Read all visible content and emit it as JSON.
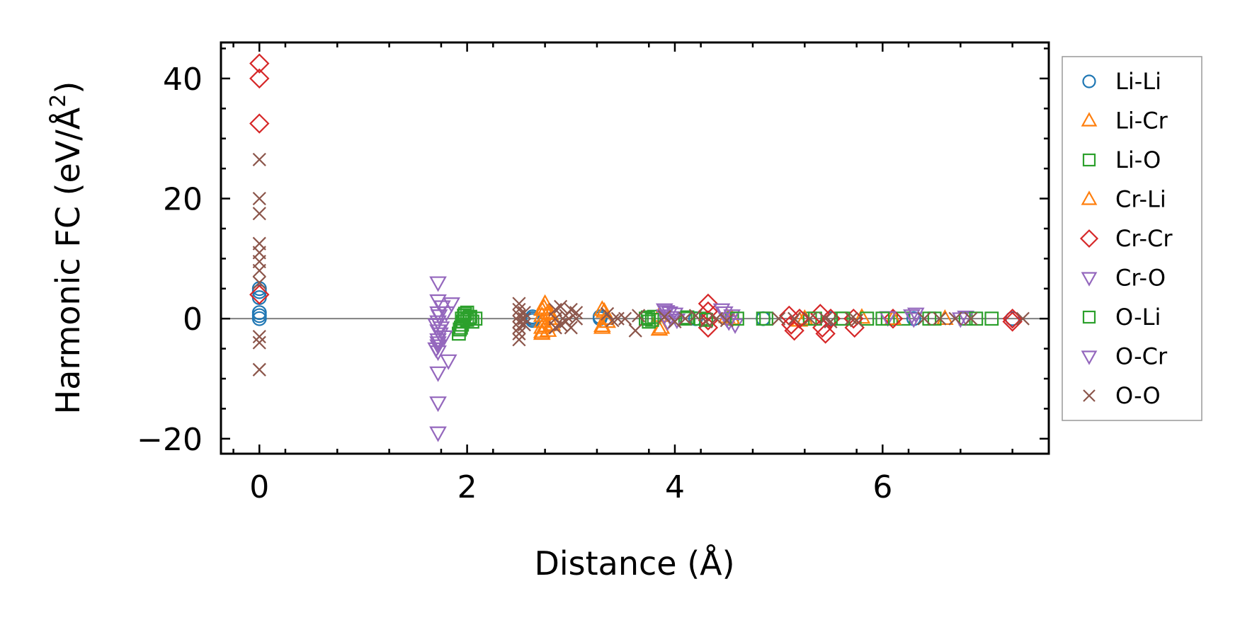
{
  "chart_data": {
    "type": "scatter",
    "xlabel": "Distance (Å)",
    "ylabel_main": "Harmonic FC (eV/Å",
    "ylabel_sup": "2",
    "ylabel_close": ")",
    "xlim": [
      -0.37,
      7.6
    ],
    "ylim": [
      -22.5,
      46
    ],
    "xticks": [
      0,
      2,
      4,
      6
    ],
    "xtick_labels": [
      "0",
      "2",
      "4",
      "6"
    ],
    "yticks": [
      -20,
      0,
      20,
      40
    ],
    "ytick_labels": [
      "−20",
      "0",
      "20",
      "40"
    ],
    "zero_line": true,
    "grid": false,
    "legend_position": "right",
    "series": [
      {
        "name": "Li-Li",
        "marker": "circle",
        "color": "#1f77b4",
        "filled": false,
        "points": [
          [
            0,
            0
          ],
          [
            0,
            0.5
          ],
          [
            0,
            1
          ],
          [
            0,
            3.5
          ],
          [
            0,
            4.5
          ],
          [
            0,
            5
          ],
          [
            2.63,
            0
          ],
          [
            2.63,
            0.3
          ],
          [
            2.63,
            -0.3
          ],
          [
            3.28,
            0
          ],
          [
            3.28,
            0.3
          ],
          [
            4.2,
            0
          ],
          [
            4.85,
            0
          ],
          [
            5.5,
            0
          ],
          [
            6.3,
            0
          ],
          [
            7.25,
            0
          ]
        ]
      },
      {
        "name": "Li-Cr",
        "marker": "triangle-up",
        "color": "#ff7f0e",
        "filled": false,
        "points": [
          [
            2.72,
            -2.5
          ],
          [
            2.72,
            -1.5
          ],
          [
            2.72,
            -0.5
          ],
          [
            2.72,
            0.5
          ],
          [
            2.72,
            1.5
          ],
          [
            2.75,
            2.5
          ],
          [
            2.78,
            -2
          ],
          [
            2.78,
            1
          ],
          [
            2.82,
            -1
          ],
          [
            2.82,
            0
          ],
          [
            3.3,
            -1.5
          ],
          [
            3.3,
            1.5
          ],
          [
            3.33,
            0
          ],
          [
            3.35,
            -0.5
          ],
          [
            3.85,
            -1.8
          ],
          [
            3.85,
            0.5
          ],
          [
            4.5,
            0.3
          ],
          [
            5.2,
            -0.3
          ],
          [
            5.8,
            0.2
          ],
          [
            6.6,
            0
          ]
        ]
      },
      {
        "name": "Li-O",
        "marker": "square",
        "color": "#2ca02c",
        "filled": false,
        "points": [
          [
            1.92,
            -2.5
          ],
          [
            1.93,
            -1.8
          ],
          [
            1.95,
            -1
          ],
          [
            1.95,
            0
          ],
          [
            1.97,
            0.5
          ],
          [
            2.0,
            1
          ],
          [
            2.02,
            0.2
          ],
          [
            2.05,
            -0.5
          ],
          [
            2.08,
            0
          ],
          [
            3.72,
            0
          ],
          [
            3.75,
            -0.5
          ],
          [
            3.8,
            0.3
          ],
          [
            4.1,
            0
          ],
          [
            4.25,
            0
          ],
          [
            4.55,
            0
          ],
          [
            4.85,
            0
          ],
          [
            5.3,
            0
          ],
          [
            5.6,
            0
          ],
          [
            5.85,
            0
          ],
          [
            6.05,
            0
          ],
          [
            6.2,
            0
          ],
          [
            6.5,
            0
          ],
          [
            6.8,
            0
          ],
          [
            7.05,
            0
          ]
        ]
      },
      {
        "name": "Cr-Li",
        "marker": "triangle-up",
        "color": "#ff7f0e",
        "filled": false,
        "points": [
          [
            2.72,
            -2.2
          ],
          [
            2.74,
            1.8
          ],
          [
            2.76,
            -1.2
          ],
          [
            2.8,
            0.8
          ],
          [
            3.3,
            -1.2
          ],
          [
            3.32,
            1.2
          ],
          [
            3.87,
            -1.5
          ],
          [
            4.55,
            0
          ],
          [
            5.25,
            0
          ],
          [
            6.1,
            0
          ]
        ]
      },
      {
        "name": "Cr-Cr",
        "marker": "diamond",
        "color": "#d62728",
        "filled": false,
        "points": [
          [
            0,
            42.5
          ],
          [
            0,
            40
          ],
          [
            0,
            32.5
          ],
          [
            0,
            4
          ],
          [
            4.32,
            2.5
          ],
          [
            4.32,
            1.2
          ],
          [
            4.32,
            -0.3
          ],
          [
            4.32,
            -1.5
          ],
          [
            5.1,
            0.5
          ],
          [
            5.12,
            -1
          ],
          [
            5.15,
            -2
          ],
          [
            5.2,
            0
          ],
          [
            5.4,
            0.8
          ],
          [
            5.42,
            -1.5
          ],
          [
            5.45,
            -2.5
          ],
          [
            5.5,
            0
          ],
          [
            5.72,
            0
          ],
          [
            5.73,
            -1.5
          ],
          [
            6.1,
            0
          ],
          [
            7.25,
            -0.5
          ],
          [
            7.25,
            0
          ]
        ]
      },
      {
        "name": "Cr-O",
        "marker": "triangle-down",
        "color": "#9467bd",
        "filled": false,
        "points": [
          [
            1.72,
            6
          ],
          [
            1.72,
            3
          ],
          [
            1.72,
            1
          ],
          [
            1.72,
            -0.5
          ],
          [
            1.72,
            -2
          ],
          [
            1.72,
            -3.5
          ],
          [
            1.72,
            -4.5
          ],
          [
            1.72,
            -5.5
          ],
          [
            1.72,
            -9
          ],
          [
            1.72,
            -14
          ],
          [
            1.72,
            -19
          ],
          [
            1.75,
            -1.5
          ],
          [
            1.76,
            2
          ],
          [
            1.78,
            -3
          ],
          [
            1.82,
            -7
          ],
          [
            1.85,
            2.5
          ],
          [
            3.9,
            1.5
          ],
          [
            3.9,
            0.5
          ],
          [
            3.93,
            -0.5
          ],
          [
            3.95,
            1
          ],
          [
            4.0,
            0.8
          ],
          [
            4.02,
            -0.2
          ],
          [
            4.45,
            1.5
          ],
          [
            4.5,
            0
          ],
          [
            4.55,
            0.5
          ],
          [
            4.58,
            -1
          ],
          [
            6.05,
            0.2
          ],
          [
            6.3,
            0
          ],
          [
            6.32,
            0.8
          ],
          [
            6.8,
            0.3
          ]
        ]
      },
      {
        "name": "O-Li",
        "marker": "square",
        "color": "#2ca02c",
        "filled": false,
        "points": [
          [
            1.94,
            -1.5
          ],
          [
            1.96,
            -0.5
          ],
          [
            1.98,
            0.8
          ],
          [
            2.0,
            -0.2
          ],
          [
            2.03,
            0.3
          ],
          [
            3.74,
            0.2
          ],
          [
            3.78,
            -0.2
          ],
          [
            4.12,
            0.2
          ],
          [
            4.3,
            -0.2
          ],
          [
            4.6,
            0
          ],
          [
            4.88,
            0
          ],
          [
            5.35,
            0
          ],
          [
            5.62,
            0
          ],
          [
            6.0,
            0
          ],
          [
            6.45,
            0
          ],
          [
            6.9,
            0
          ]
        ]
      },
      {
        "name": "O-Cr",
        "marker": "triangle-down",
        "color": "#9467bd",
        "filled": false,
        "points": [
          [
            1.7,
            -1
          ],
          [
            1.7,
            -5
          ],
          [
            1.72,
            -4
          ],
          [
            1.73,
            0.5
          ],
          [
            1.74,
            -2.5
          ],
          [
            1.8,
            1
          ],
          [
            3.92,
            1.2
          ],
          [
            3.96,
            0.2
          ],
          [
            4.48,
            1
          ],
          [
            4.52,
            -0.5
          ],
          [
            6.28,
            0.5
          ],
          [
            6.75,
            0
          ]
        ]
      },
      {
        "name": "O-O",
        "marker": "x",
        "color": "#8c564b",
        "filled": false,
        "points": [
          [
            0,
            26.5
          ],
          [
            0,
            20
          ],
          [
            0,
            17.5
          ],
          [
            0,
            12.5
          ],
          [
            0,
            11
          ],
          [
            0,
            9.5
          ],
          [
            0,
            8
          ],
          [
            0,
            6
          ],
          [
            0,
            -3
          ],
          [
            0,
            -4
          ],
          [
            0,
            -8.5
          ],
          [
            2.5,
            2.5
          ],
          [
            2.5,
            1.5
          ],
          [
            2.5,
            0.5
          ],
          [
            2.5,
            -0.5
          ],
          [
            2.5,
            -1.5
          ],
          [
            2.5,
            -2.5
          ],
          [
            2.5,
            -3.5
          ],
          [
            2.55,
            0
          ],
          [
            2.55,
            1
          ],
          [
            2.55,
            -1
          ],
          [
            2.85,
            1.5
          ],
          [
            2.85,
            0
          ],
          [
            2.85,
            -1.5
          ],
          [
            2.9,
            2
          ],
          [
            2.9,
            -1
          ],
          [
            2.95,
            0.5
          ],
          [
            2.95,
            -0.5
          ],
          [
            3.0,
            1.5
          ],
          [
            3.0,
            -1.5
          ],
          [
            3.05,
            0
          ],
          [
            3.05,
            1
          ],
          [
            3.35,
            0.8
          ],
          [
            3.4,
            -0.3
          ],
          [
            3.45,
            0
          ],
          [
            3.52,
            0
          ],
          [
            3.62,
            -2
          ],
          [
            3.65,
            0.5
          ],
          [
            3.9,
            0.3
          ],
          [
            4.0,
            -0.5
          ],
          [
            4.1,
            0
          ],
          [
            4.2,
            0.5
          ],
          [
            4.3,
            -0.5
          ],
          [
            4.4,
            0
          ],
          [
            4.5,
            -0.3
          ],
          [
            5.0,
            0
          ],
          [
            5.15,
            0
          ],
          [
            5.3,
            0
          ],
          [
            5.45,
            0
          ],
          [
            5.5,
            -0.5
          ],
          [
            5.7,
            0
          ],
          [
            5.75,
            -0.3
          ],
          [
            6.4,
            0
          ],
          [
            6.55,
            0
          ],
          [
            6.7,
            0
          ],
          [
            6.85,
            0
          ],
          [
            7.35,
            0
          ]
        ]
      }
    ]
  }
}
